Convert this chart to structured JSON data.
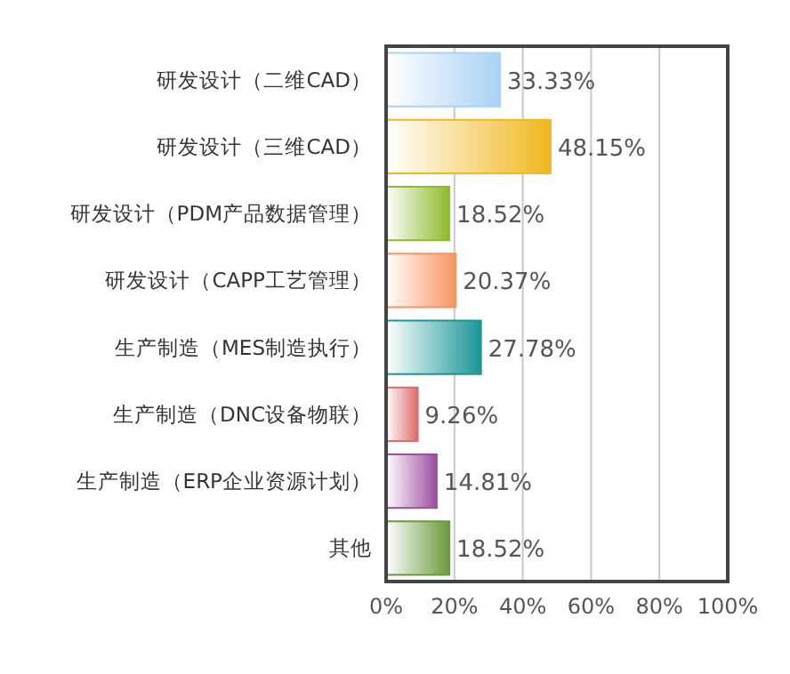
{
  "chart_data": {
    "type": "bar",
    "orientation": "horizontal",
    "categories": [
      "研发设计（二维CAD）",
      "研发设计（三维CAD）",
      "研发设计（PDM产品数据管理）",
      "研发设计（CAPP工艺管理）",
      "生产制造（MES制造执行）",
      "生产制造（DNC设备物联）",
      "生产制造（ERP企业资源计划）",
      "其他"
    ],
    "values": [
      33.33,
      48.15,
      18.52,
      20.37,
      27.78,
      9.26,
      14.81,
      18.52
    ],
    "value_labels": [
      "33.33%",
      "48.15%",
      "18.52%",
      "20.37%",
      "27.78%",
      "9.26%",
      "14.81%",
      "18.52%"
    ],
    "colors": [
      "#a9d2f5",
      "#f0b820",
      "#8dbb2a",
      "#f79560",
      "#1a9696",
      "#e06a6a",
      "#9a4e9e",
      "#6a9a3a"
    ],
    "xlim": [
      0,
      100
    ],
    "xticks": [
      {
        "value": 0,
        "label": "0%"
      },
      {
        "value": 20,
        "label": "20%"
      },
      {
        "value": 40,
        "label": "40%"
      },
      {
        "value": 60,
        "label": "60%"
      },
      {
        "value": 80,
        "label": "80%"
      },
      {
        "value": 100,
        "label": "100%"
      }
    ],
    "grid": "x"
  }
}
